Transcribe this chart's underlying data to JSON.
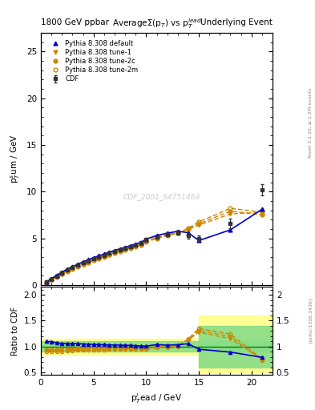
{
  "title_left": "1800 GeV ppbar",
  "title_right": "Underlying Event",
  "plot_title": "AverageΣ(p$_{T}$) vs p$_{T}^{lead}$",
  "xlabel": "p$_{T}^{l}$ead / GeV",
  "ylabel_main": "p$_{T}^{s}$um / GeV",
  "ylabel_ratio": "Ratio to CDF",
  "watermark": "CDF_2001_S4751469",
  "right_label_top": "Rivet 3.1.10, ≥ 1.2M events",
  "right_label_bot": "[arXiv:1306.3436]",
  "xlim": [
    0,
    22
  ],
  "ylim_main": [
    0,
    27
  ],
  "ylim_ratio": [
    0.45,
    2.15
  ],
  "cdf_x": [
    0.5,
    1.0,
    1.5,
    2.0,
    2.5,
    3.0,
    3.5,
    4.0,
    4.5,
    5.0,
    5.5,
    6.0,
    6.5,
    7.0,
    7.5,
    8.0,
    8.5,
    9.0,
    9.5,
    10.0,
    11.0,
    12.0,
    13.0,
    14.0,
    15.0,
    18.0,
    21.0
  ],
  "cdf_y": [
    0.3,
    0.62,
    0.97,
    1.3,
    1.6,
    1.85,
    2.1,
    2.35,
    2.58,
    2.8,
    3.0,
    3.2,
    3.4,
    3.58,
    3.76,
    3.93,
    4.1,
    4.3,
    4.5,
    4.85,
    5.1,
    5.4,
    5.55,
    5.3,
    5.0,
    6.6,
    10.2
  ],
  "cdf_yerr": [
    0.05,
    0.05,
    0.05,
    0.05,
    0.05,
    0.05,
    0.05,
    0.05,
    0.05,
    0.05,
    0.05,
    0.05,
    0.05,
    0.05,
    0.05,
    0.05,
    0.05,
    0.05,
    0.05,
    0.1,
    0.1,
    0.15,
    0.2,
    0.3,
    0.3,
    0.5,
    0.6
  ],
  "py_def_x": [
    0.5,
    1.0,
    1.5,
    2.0,
    2.5,
    3.0,
    3.5,
    4.0,
    4.5,
    5.0,
    5.5,
    6.0,
    6.5,
    7.0,
    7.5,
    8.0,
    8.5,
    9.0,
    9.5,
    10.0,
    11.0,
    12.0,
    13.0,
    14.0,
    15.0,
    18.0,
    21.0
  ],
  "py_def_y": [
    0.33,
    0.68,
    1.04,
    1.38,
    1.69,
    1.96,
    2.22,
    2.47,
    2.7,
    2.92,
    3.12,
    3.32,
    3.51,
    3.69,
    3.87,
    4.03,
    4.2,
    4.38,
    4.56,
    4.9,
    5.3,
    5.55,
    5.75,
    5.6,
    4.75,
    5.9,
    8.1
  ],
  "py_t1_x": [
    0.5,
    1.0,
    1.5,
    2.0,
    2.5,
    3.0,
    3.5,
    4.0,
    4.5,
    5.0,
    5.5,
    6.0,
    6.5,
    7.0,
    7.5,
    8.0,
    8.5,
    9.0,
    9.5,
    10.0,
    11.0,
    12.0,
    13.0,
    14.0,
    15.0,
    18.0,
    21.0
  ],
  "py_t1_y": [
    0.28,
    0.58,
    0.91,
    1.23,
    1.52,
    1.77,
    2.02,
    2.26,
    2.49,
    2.71,
    2.91,
    3.11,
    3.3,
    3.49,
    3.67,
    3.84,
    4.01,
    4.18,
    4.36,
    4.7,
    5.1,
    5.4,
    5.65,
    5.95,
    6.4,
    7.6,
    7.8
  ],
  "py_t2c_x": [
    0.5,
    1.0,
    1.5,
    2.0,
    2.5,
    3.0,
    3.5,
    4.0,
    4.5,
    5.0,
    5.5,
    6.0,
    6.5,
    7.0,
    7.5,
    8.0,
    8.5,
    9.0,
    9.5,
    10.0,
    11.0,
    12.0,
    13.0,
    14.0,
    15.0,
    18.0,
    21.0
  ],
  "py_t2c_y": [
    0.28,
    0.58,
    0.91,
    1.22,
    1.51,
    1.76,
    2.01,
    2.25,
    2.48,
    2.69,
    2.89,
    3.09,
    3.28,
    3.47,
    3.65,
    3.82,
    3.99,
    4.16,
    4.34,
    4.67,
    5.07,
    5.37,
    5.62,
    6.0,
    6.55,
    7.9,
    7.5
  ],
  "py_t2m_x": [
    0.5,
    1.0,
    1.5,
    2.0,
    2.5,
    3.0,
    3.5,
    4.0,
    4.5,
    5.0,
    5.5,
    6.0,
    6.5,
    7.0,
    7.5,
    8.0,
    8.5,
    9.0,
    9.5,
    10.0,
    11.0,
    12.0,
    13.0,
    14.0,
    15.0,
    18.0,
    21.0
  ],
  "py_t2m_y": [
    0.27,
    0.56,
    0.88,
    1.18,
    1.47,
    1.71,
    1.95,
    2.19,
    2.41,
    2.63,
    2.83,
    3.02,
    3.21,
    3.4,
    3.58,
    3.74,
    3.91,
    4.08,
    4.25,
    4.58,
    4.98,
    5.28,
    5.52,
    6.1,
    6.75,
    8.2,
    7.8
  ],
  "cdf_color": "#333333",
  "py_def_color": "#0000cc",
  "py_tune_color": "#cc8800"
}
